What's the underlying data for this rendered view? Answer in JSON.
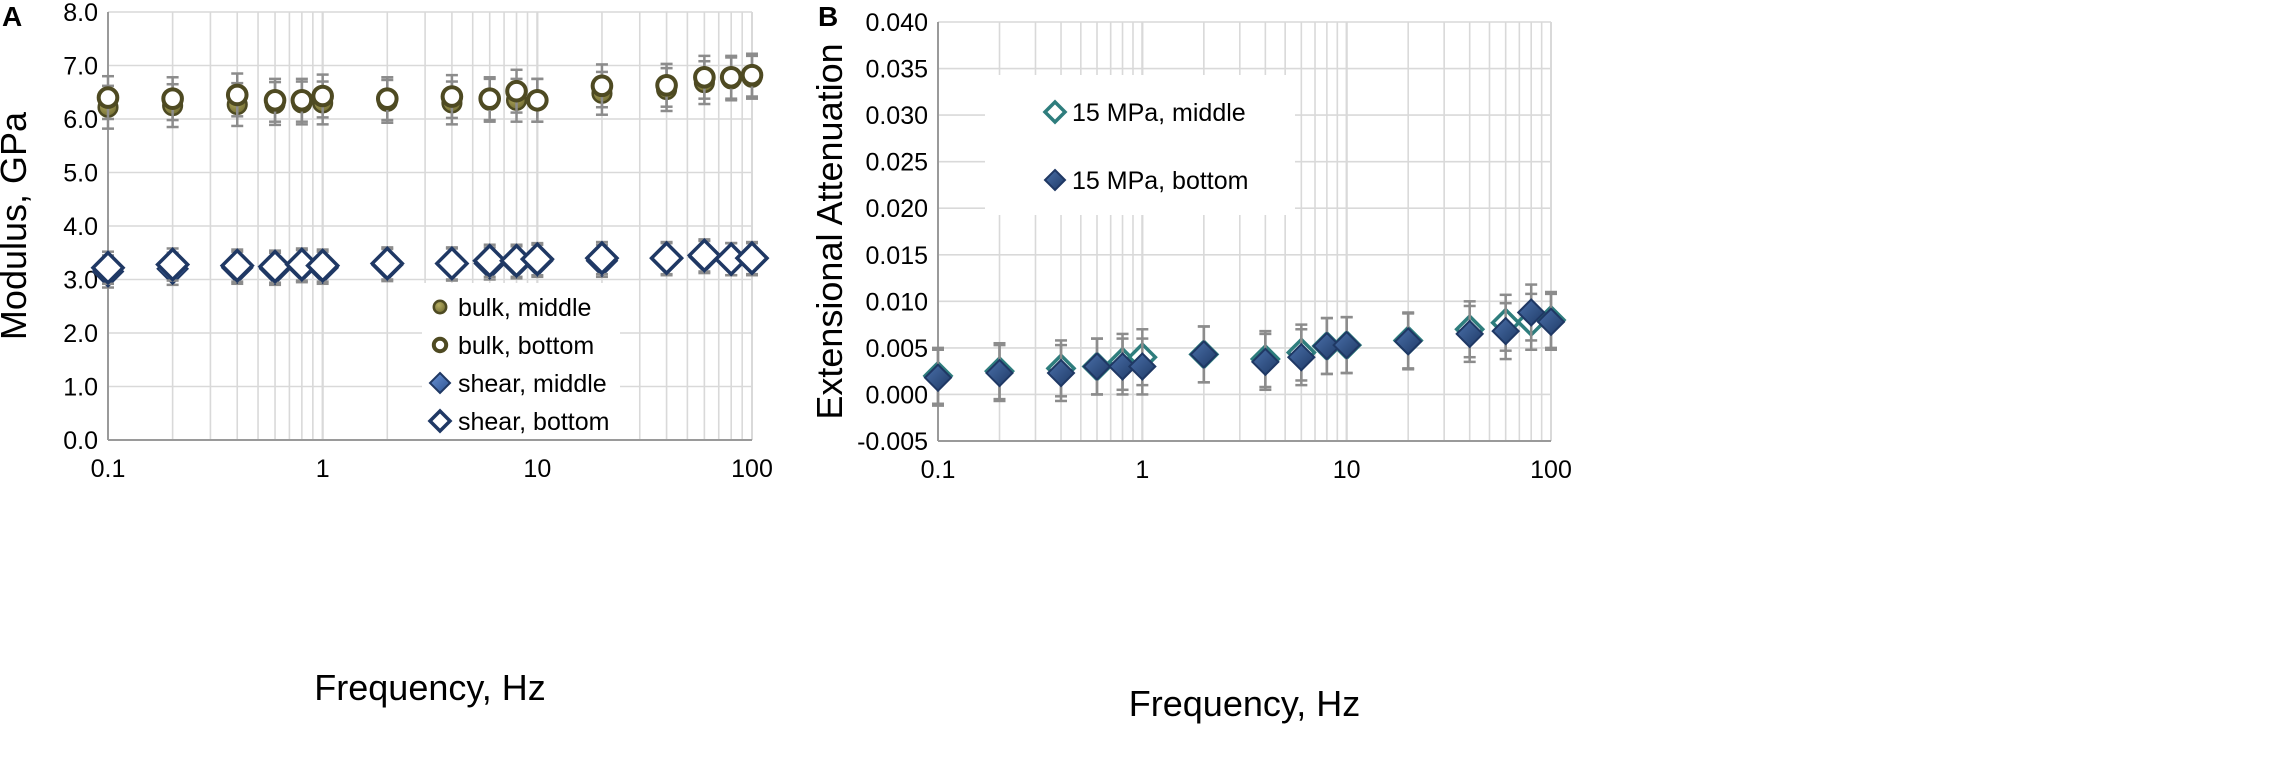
{
  "chart_data": [
    {
      "panel_label": "A",
      "type": "scatter",
      "x_scale": "log",
      "xlabel": "Frequency, Hz",
      "ylabel": "Modulus, GPa",
      "xlim": [
        0.1,
        100
      ],
      "ylim": [
        0,
        8
      ],
      "x_ticks": [
        0.1,
        1,
        10,
        100
      ],
      "x_tick_labels": [
        "0.1",
        "1",
        "10",
        "100"
      ],
      "y_ticks": [
        0,
        1,
        2,
        3,
        4,
        5,
        6,
        7,
        8
      ],
      "y_tick_labels": [
        "0.0",
        "1.0",
        "2.0",
        "3.0",
        "4.0",
        "5.0",
        "6.0",
        "7.0",
        "8.0"
      ],
      "grid": true,
      "legend_position": "bottom-center",
      "series": [
        {
          "name": "bulk, middle",
          "marker": "circle-filled",
          "color": "#7f7a3c",
          "x": [
            0.1,
            0.2,
            0.4,
            0.6,
            0.8,
            1,
            2,
            4,
            6,
            8,
            10,
            20,
            40,
            60,
            80,
            100
          ],
          "y": [
            6.22,
            6.25,
            6.27,
            6.29,
            6.3,
            6.3,
            6.33,
            6.3,
            6.35,
            6.35,
            6.35,
            6.48,
            6.55,
            6.68,
            6.75,
            6.78
          ],
          "err": [
            0.4,
            0.4,
            0.4,
            0.4,
            0.4,
            0.4,
            0.4,
            0.4,
            0.4,
            0.4,
            0.4,
            0.4,
            0.4,
            0.4,
            0.4,
            0.4
          ]
        },
        {
          "name": "bulk, bottom",
          "marker": "circle-open",
          "color": "#4e4a22",
          "x": [
            0.1,
            0.2,
            0.4,
            0.6,
            0.8,
            1,
            2,
            4,
            6,
            8,
            10,
            20,
            40,
            60,
            80,
            100
          ],
          "y": [
            6.4,
            6.38,
            6.45,
            6.35,
            6.35,
            6.43,
            6.38,
            6.42,
            6.38,
            6.52,
            6.35,
            6.62,
            6.63,
            6.78,
            6.78,
            6.82
          ],
          "err": [
            0.4,
            0.4,
            0.4,
            0.4,
            0.4,
            0.4,
            0.4,
            0.4,
            0.4,
            0.4,
            0.4,
            0.4,
            0.4,
            0.4,
            0.4,
            0.4
          ]
        },
        {
          "name": "shear, middle",
          "marker": "diamond-filled",
          "color": "#3c66a8",
          "x": [
            0.1,
            0.2,
            0.4,
            0.6,
            0.8,
            1,
            2,
            4,
            6,
            8,
            10,
            20,
            40,
            60,
            80,
            100
          ],
          "y": [
            3.15,
            3.2,
            3.22,
            3.2,
            3.25,
            3.22,
            3.27,
            3.28,
            3.3,
            3.32,
            3.35,
            3.35,
            3.38,
            3.42,
            3.38,
            3.38
          ],
          "err": [
            0.3,
            0.3,
            0.3,
            0.3,
            0.3,
            0.3,
            0.3,
            0.3,
            0.3,
            0.3,
            0.3,
            0.3,
            0.3,
            0.3,
            0.3,
            0.3
          ]
        },
        {
          "name": "shear, bottom",
          "marker": "diamond-open",
          "color": "#1f3864",
          "x": [
            0.1,
            0.2,
            0.4,
            0.6,
            0.8,
            1,
            2,
            4,
            6,
            8,
            10,
            20,
            40,
            60,
            80,
            100
          ],
          "y": [
            3.22,
            3.28,
            3.26,
            3.24,
            3.28,
            3.26,
            3.3,
            3.3,
            3.35,
            3.35,
            3.38,
            3.4,
            3.4,
            3.45,
            3.38,
            3.4
          ],
          "err": [
            0.3,
            0.3,
            0.3,
            0.3,
            0.3,
            0.3,
            0.3,
            0.3,
            0.3,
            0.3,
            0.3,
            0.3,
            0.3,
            0.3,
            0.3,
            0.3
          ]
        }
      ]
    },
    {
      "panel_label": "B",
      "type": "scatter",
      "x_scale": "log",
      "xlabel": "Frequency, Hz",
      "ylabel": "Extensional Attenuation",
      "xlim": [
        0.1,
        100
      ],
      "ylim": [
        -0.005,
        0.04
      ],
      "x_ticks": [
        0.1,
        1,
        10,
        100
      ],
      "x_tick_labels": [
        "0.1",
        "1",
        "10",
        "100"
      ],
      "y_ticks": [
        -0.005,
        0,
        0.005,
        0.01,
        0.015,
        0.02,
        0.025,
        0.03,
        0.035,
        0.04
      ],
      "y_tick_labels": [
        "-0.005",
        "0.000",
        "0.005",
        "0.010",
        "0.015",
        "0.020",
        "0.025",
        "0.030",
        "0.035",
        "0.040"
      ],
      "grid": true,
      "legend_position": "upper-left",
      "series": [
        {
          "name": "15 MPa, middle",
          "marker": "diamond-open",
          "color": "#2e7d7d",
          "x": [
            0.1,
            0.2,
            0.4,
            0.6,
            0.8,
            1,
            2,
            4,
            6,
            8,
            10,
            20,
            40,
            60,
            80,
            100
          ],
          "y": [
            0.002,
            0.0025,
            0.0028,
            0.003,
            0.0035,
            0.004,
            0.0043,
            0.0038,
            0.0045,
            0.0052,
            0.0053,
            0.0058,
            0.007,
            0.0077,
            0.0078,
            0.008
          ],
          "err": [
            0.003,
            0.003,
            0.003,
            0.003,
            0.003,
            0.003,
            0.003,
            0.003,
            0.003,
            0.003,
            0.003,
            0.003,
            0.003,
            0.003,
            0.003,
            0.003
          ]
        },
        {
          "name": "15 MPa, bottom",
          "marker": "diamond-filled",
          "color": "#2f4f80",
          "x": [
            0.1,
            0.2,
            0.4,
            0.6,
            0.8,
            1,
            2,
            4,
            6,
            8,
            10,
            20,
            40,
            60,
            80,
            100
          ],
          "y": [
            0.0018,
            0.0023,
            0.0023,
            0.003,
            0.003,
            0.003,
            0.0043,
            0.0035,
            0.004,
            0.0052,
            0.0053,
            0.0057,
            0.0065,
            0.0068,
            0.0088,
            0.0078
          ],
          "err": [
            0.003,
            0.003,
            0.003,
            0.003,
            0.003,
            0.003,
            0.003,
            0.003,
            0.003,
            0.003,
            0.003,
            0.003,
            0.003,
            0.003,
            0.003,
            0.003
          ]
        }
      ]
    }
  ]
}
